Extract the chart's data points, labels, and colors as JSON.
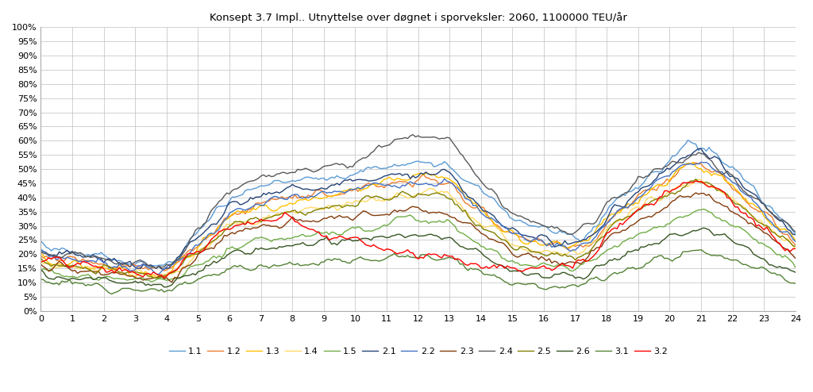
{
  "title": "Konsept 3.7 Impl.. Utnyttelse over døgnet i sporveksler: 2060, 1100000 TEU/år",
  "xlim": [
    0,
    24
  ],
  "ylim": [
    0,
    1.0
  ],
  "yticks": [
    0.0,
    0.05,
    0.1,
    0.15,
    0.2,
    0.25,
    0.3,
    0.35,
    0.4,
    0.45,
    0.5,
    0.55,
    0.6,
    0.65,
    0.7,
    0.75,
    0.8,
    0.85,
    0.9,
    0.95,
    1.0
  ],
  "xticks": [
    0,
    1,
    2,
    3,
    4,
    5,
    6,
    7,
    8,
    9,
    10,
    11,
    12,
    13,
    14,
    15,
    16,
    17,
    18,
    19,
    20,
    21,
    22,
    23,
    24
  ],
  "series_order": [
    "1.1",
    "1.2",
    "1.3",
    "1.4",
    "1.5",
    "2.1",
    "2.2",
    "2.3",
    "2.4",
    "2.5",
    "2.6",
    "3.1",
    "3.2"
  ],
  "series": {
    "1.1": {
      "color": "#5B9BD5",
      "lw": 1.0
    },
    "1.2": {
      "color": "#ED7D31",
      "lw": 1.0
    },
    "1.3": {
      "color": "#FFC000",
      "lw": 1.0
    },
    "1.4": {
      "color": "#FFD966",
      "lw": 1.0
    },
    "1.5": {
      "color": "#70AD47",
      "lw": 1.0
    },
    "2.1": {
      "color": "#264478",
      "lw": 1.0
    },
    "2.2": {
      "color": "#4472C4",
      "lw": 1.0
    },
    "2.3": {
      "color": "#843C0C",
      "lw": 1.0
    },
    "2.4": {
      "color": "#595959",
      "lw": 1.0
    },
    "2.5": {
      "color": "#808000",
      "lw": 1.0
    },
    "2.6": {
      "color": "#375623",
      "lw": 1.0
    },
    "3.1": {
      "color": "#548235",
      "lw": 1.0
    },
    "3.2": {
      "color": "#FF0000",
      "lw": 1.0
    }
  },
  "bg_color": "#ffffff",
  "grid_color": "#bfbfbf",
  "figsize": [
    10.24,
    4.94
  ],
  "dpi": 100
}
